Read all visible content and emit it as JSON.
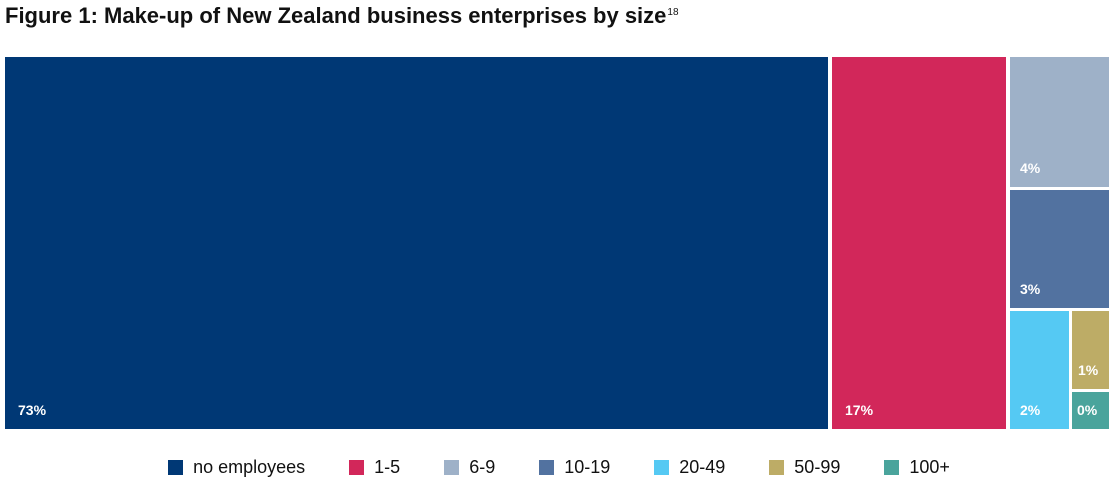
{
  "title": {
    "text": "Figure 1: Make-up of New Zealand business enterprises by size",
    "superscript": "18"
  },
  "chart_data": {
    "type": "treemap",
    "title": "Figure 1: Make-up of New Zealand business enterprises by size",
    "legend_position": "bottom",
    "items": [
      {
        "name": "no employees",
        "value": 73,
        "label": "73%",
        "color": "#003875"
      },
      {
        "name": "1-5",
        "value": 17,
        "label": "17%",
        "color": "#d2275a"
      },
      {
        "name": "6-9",
        "value": 4,
        "label": "4%",
        "color": "#9eb1c8"
      },
      {
        "name": "10-19",
        "value": 3,
        "label": "3%",
        "color": "#5272a0"
      },
      {
        "name": "20-49",
        "value": 2,
        "label": "2%",
        "color": "#55c9f3"
      },
      {
        "name": "50-99",
        "value": 1,
        "label": "1%",
        "color": "#bdac66"
      },
      {
        "name": "100+",
        "value": 0,
        "label": "0%",
        "color": "#4aa49c"
      }
    ]
  }
}
